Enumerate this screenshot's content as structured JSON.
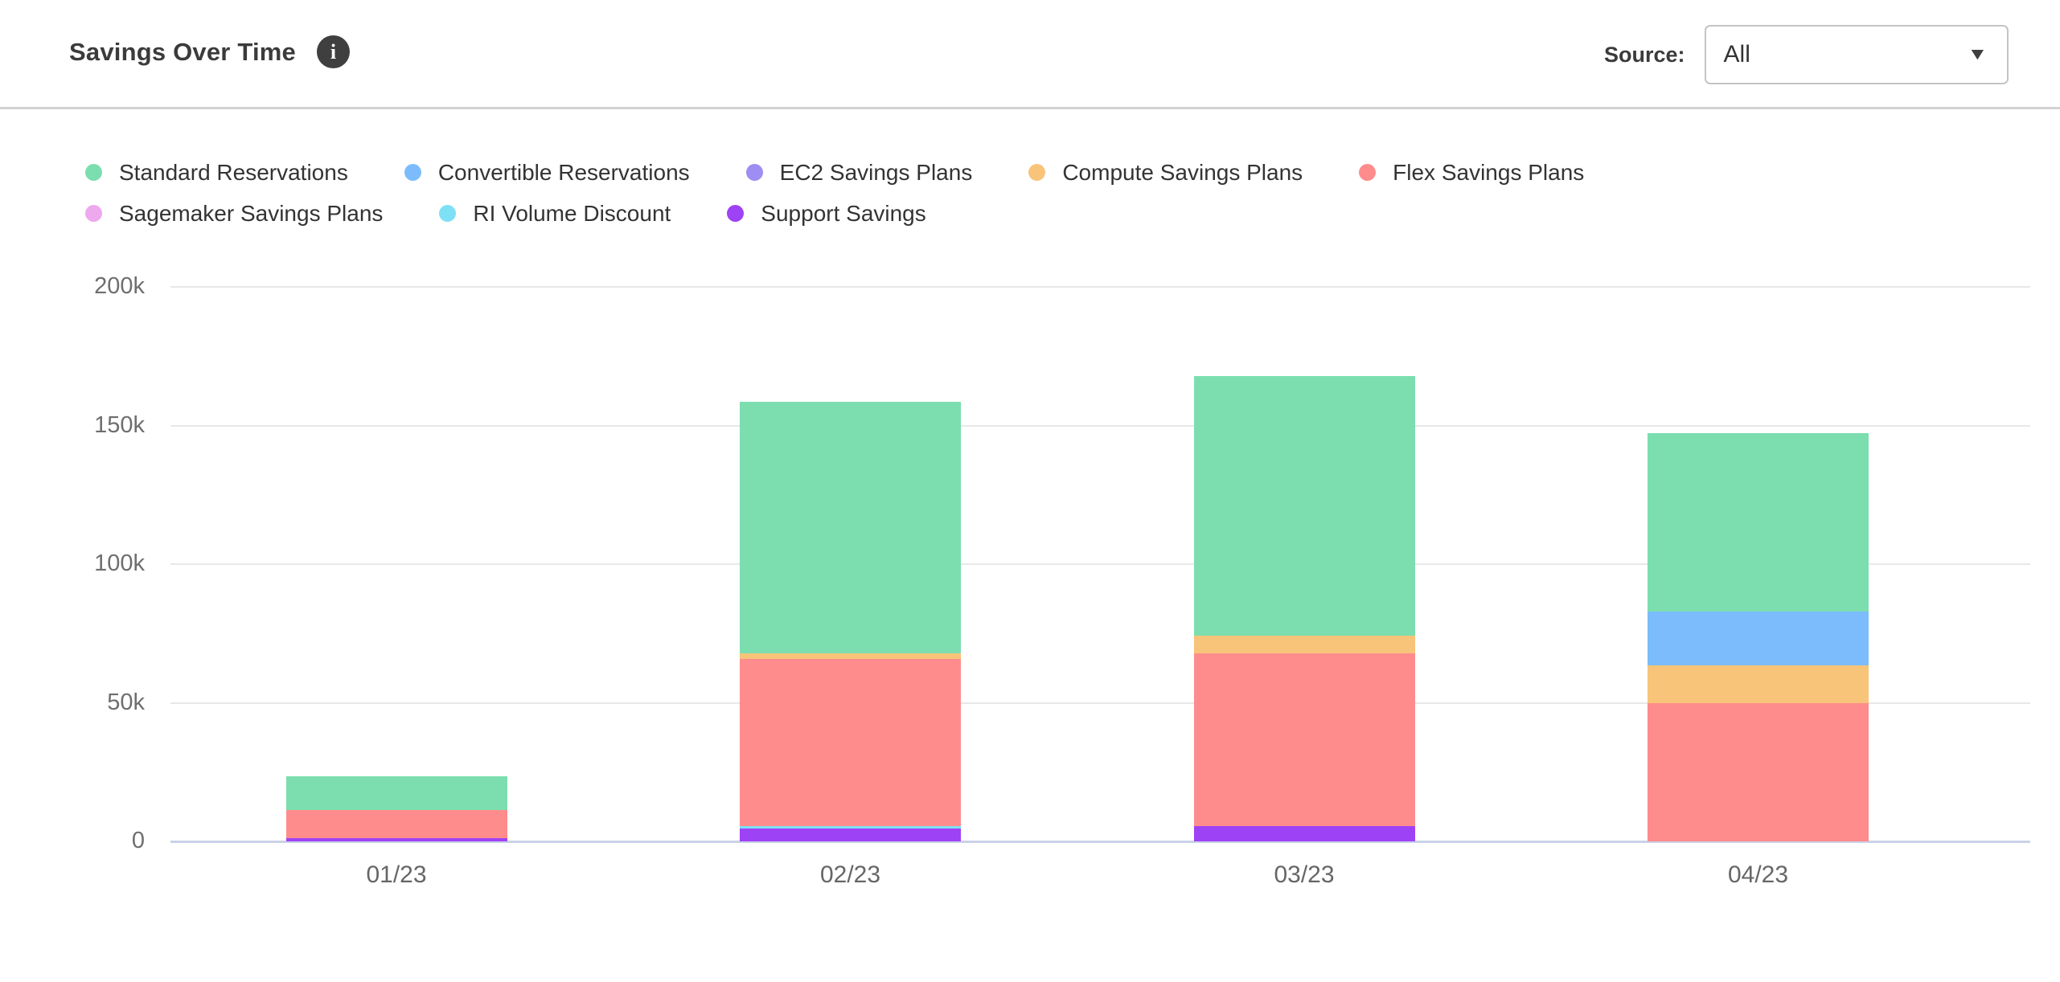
{
  "header": {
    "title": "Savings Over Time",
    "info_icon": "info-circle",
    "source_label": "Source:",
    "source_value": "All"
  },
  "legend": {
    "rows": [
      [
        "Standard Reservations",
        "Convertible Reservations",
        "EC2 Savings Plans",
        "Compute Savings Plans",
        "Flex Savings Plans"
      ],
      [
        "Sagemaker Savings Plans",
        "RI Volume Discount",
        "Support Savings"
      ]
    ]
  },
  "colors": {
    "Standard Reservations": "#7CDEAF",
    "Convertible Reservations": "#7CBCFC",
    "EC2 Savings Plans": "#9E8DF2",
    "Compute Savings Plans": "#F8C479",
    "Flex Savings Plans": "#FF8C8C",
    "Sagemaker Savings Plans": "#EEA8EE",
    "RI Volume Discount": "#7EE0F5",
    "Support Savings": "#9D42F5",
    "axis_line": "#C9D2E8",
    "gridline": "#E8E8E8",
    "title_text": "#3B3B3B",
    "tick_text": "#6E6E6E"
  },
  "chart_data": {
    "type": "bar",
    "stacked": true,
    "title": "Savings Over Time",
    "categories": [
      "01/23",
      "02/23",
      "03/23",
      "04/23"
    ],
    "series": [
      {
        "name": "Standard Reservations",
        "color": "#7CDEAF",
        "values": [
          12300,
          90700,
          93500,
          64200
        ]
      },
      {
        "name": "Convertible Reservations",
        "color": "#7CBCFC",
        "values": [
          0,
          0,
          0,
          19400
        ]
      },
      {
        "name": "EC2 Savings Plans",
        "color": "#9E8DF2",
        "values": [
          0,
          0,
          0,
          0
        ]
      },
      {
        "name": "Compute Savings Plans",
        "color": "#F8C479",
        "values": [
          0,
          2100,
          6600,
          13700
        ]
      },
      {
        "name": "Flex Savings Plans",
        "color": "#FF8C8C",
        "values": [
          10000,
          60400,
          62300,
          49900
        ]
      },
      {
        "name": "Sagemaker Savings Plans",
        "color": "#EEA8EE",
        "values": [
          0,
          0,
          0,
          0
        ]
      },
      {
        "name": "RI Volume Discount",
        "color": "#7EE0F5",
        "values": [
          0,
          900,
          0,
          0
        ]
      },
      {
        "name": "Support Savings",
        "color": "#9D42F5",
        "values": [
          1200,
          4500,
          5400,
          0
        ]
      }
    ],
    "stack_order_bottom_to_top": [
      "Support Savings",
      "RI Volume Discount",
      "Sagemaker Savings Plans",
      "Flex Savings Plans",
      "Compute Savings Plans",
      "EC2 Savings Plans",
      "Convertible Reservations",
      "Standard Reservations"
    ],
    "totals": [
      23500,
      158600,
      167800,
      147200
    ],
    "xlabel": "",
    "ylabel": "",
    "ylim": [
      0,
      200000
    ],
    "yticks": [
      {
        "value": 0,
        "label": "0"
      },
      {
        "value": 50000,
        "label": "50k"
      },
      {
        "value": 100000,
        "label": "100k"
      },
      {
        "value": 150000,
        "label": "150k"
      },
      {
        "value": 200000,
        "label": "200k"
      }
    ],
    "grid": true,
    "legend_position": "top-left"
  }
}
